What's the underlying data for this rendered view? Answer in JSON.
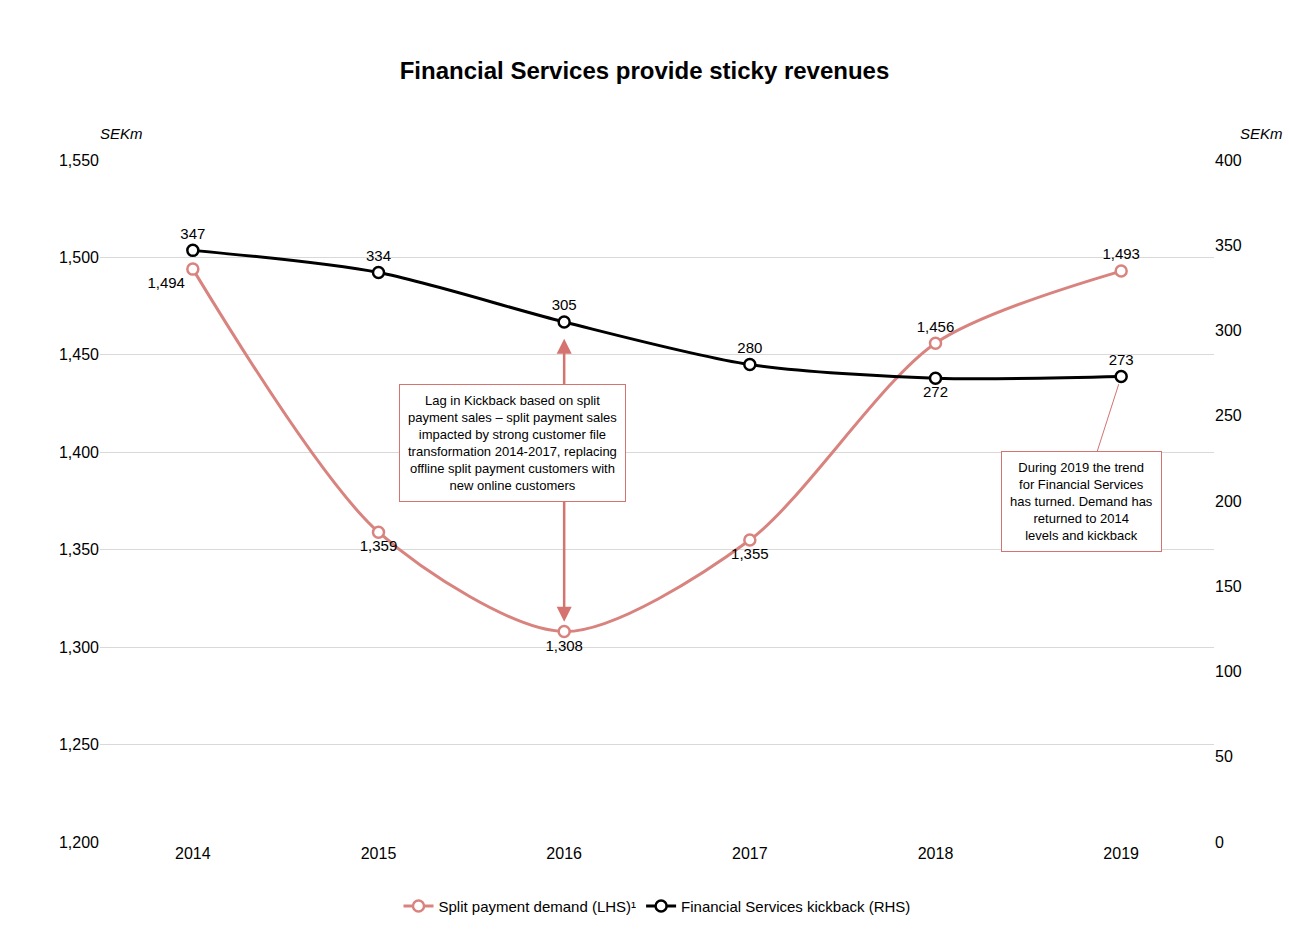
{
  "chart_data": {
    "type": "line",
    "title": "Financial Services provide sticky revenues",
    "y_label": "SEKm",
    "y2_label": "SEKm",
    "categories": [
      "2014",
      "2015",
      "2016",
      "2017",
      "2018",
      "2019"
    ],
    "series": [
      {
        "name": "Split payment demand (LHS)¹",
        "color": "#d9837f",
        "axis": "y",
        "values": [
          1494,
          1359,
          1308,
          1355,
          1456,
          1493
        ],
        "value_labels": [
          "1,494",
          "1,359",
          "1,308",
          "1,355",
          "1,456",
          "1,493"
        ],
        "marker": "circle",
        "line_style": "smooth"
      },
      {
        "name": "Financial Services kickback (RHS)",
        "color": "#000000",
        "axis": "y2",
        "values": [
          347,
          334,
          305,
          280,
          272,
          273
        ],
        "marker": "circle",
        "line_style": "smooth"
      }
    ],
    "ylim": [
      1200,
      1550
    ],
    "yticks": [
      {
        "value": 1200,
        "label": "1,200"
      },
      {
        "value": 1250,
        "label": "1,250"
      },
      {
        "value": 1300,
        "label": "1,300"
      },
      {
        "value": 1350,
        "label": "1,350"
      },
      {
        "value": 1400,
        "label": "1,400"
      },
      {
        "value": 1450,
        "label": "1,450"
      },
      {
        "value": 1500,
        "label": "1,500"
      },
      {
        "value": 1550,
        "label": "1,550"
      }
    ],
    "y2lim": [
      0,
      400
    ],
    "y2ticks": [
      0,
      50,
      100,
      150,
      200,
      250,
      300,
      350,
      400
    ],
    "grid": true,
    "data_labels": true,
    "legend": "bottom",
    "annotations": [
      "Lag in Kickback based on split payment sales – split payment sales impacted by strong customer file transformation 2014-2017, replacing offline split payment customers with new online customers",
      "During 2019 the trend for Financial Services has turned. Demand has returned to 2014 levels and kickback"
    ]
  }
}
